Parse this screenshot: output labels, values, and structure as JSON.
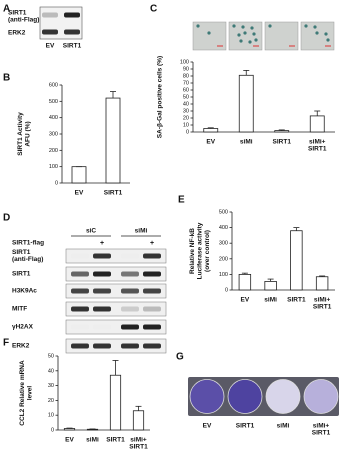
{
  "chart_data": [
    {
      "type": "bar",
      "panel": "B",
      "ylabel": [
        "SIRT1 Activity",
        "AFU (%)"
      ],
      "categories": [
        [
          "EV"
        ],
        [
          "SIRT1"
        ]
      ],
      "values": [
        100,
        520
      ],
      "errors": [
        0,
        40
      ],
      "ylim": [
        0,
        600
      ],
      "yticks": [
        0,
        100,
        200,
        300,
        400,
        500,
        600
      ],
      "color": "#ffffff"
    },
    {
      "type": "bar",
      "panel": "C",
      "ylabel": [
        "SA-β-Gal positive cells (%)"
      ],
      "categories": [
        [
          "EV"
        ],
        [
          "siMi"
        ],
        [
          "SIRT1"
        ],
        [
          "siMi+",
          "SIRT1"
        ]
      ],
      "values": [
        5,
        81,
        2,
        23
      ],
      "errors": [
        1,
        7,
        1,
        7
      ],
      "ylim": [
        0,
        100
      ],
      "yticks": [
        0,
        10,
        20,
        30,
        40,
        50,
        60,
        70,
        80,
        90,
        100
      ],
      "color": "#ffffff"
    },
    {
      "type": "bar",
      "panel": "E",
      "ylabel": [
        "Relative NF-kB",
        "Luciferase activity",
        "(over control)"
      ],
      "categories": [
        [
          "EV"
        ],
        [
          "siMi"
        ],
        [
          "SIRT1"
        ],
        [
          "siMi+",
          "SIRT1"
        ]
      ],
      "values": [
        100,
        55,
        380,
        85
      ],
      "errors": [
        8,
        15,
        20,
        5
      ],
      "ylim": [
        0,
        500
      ],
      "yticks": [
        0,
        100,
        200,
        300,
        400,
        500
      ],
      "color": "#ffffff"
    },
    {
      "type": "bar",
      "panel": "F",
      "ylabel": [
        "CCL2 Relative mRNA",
        "level"
      ],
      "categories": [
        [
          "EV"
        ],
        [
          "siMi"
        ],
        [
          "SIRT1"
        ],
        [
          "siMi+",
          "SIRT1"
        ]
      ],
      "values": [
        1,
        0.5,
        37,
        13
      ],
      "errors": [
        0.3,
        0.2,
        10,
        3
      ],
      "ylim": [
        0,
        50
      ],
      "yticks": [
        0,
        10,
        20,
        30,
        40,
        50
      ],
      "color": "#ffffff"
    }
  ],
  "panel_a": {
    "letter": "A",
    "row_labels": [
      [
        "SIRT1",
        "(anti-Flag)"
      ],
      [
        "ERK2"
      ]
    ],
    "lanes": [
      "EV",
      "SIRT1"
    ]
  },
  "panel_d": {
    "letter": "D",
    "groups": [
      "siC",
      "siMi"
    ],
    "treatment": "SIRT1-flag",
    "treatment_marks": [
      "+",
      "+"
    ],
    "row_labels": [
      [
        "SIRT1",
        "(anti-Flag)"
      ],
      [
        "SIRT1"
      ],
      [
        "H3K9Ac"
      ],
      [
        "MITF"
      ],
      [
        "γH2AX"
      ],
      [
        "ERK2"
      ]
    ]
  },
  "panel_g": {
    "letter": "G",
    "labels": [
      [
        "EV"
      ],
      [
        "SIRT1"
      ],
      [
        "siMi"
      ],
      [
        "siMi+",
        "SIRT1"
      ]
    ]
  }
}
